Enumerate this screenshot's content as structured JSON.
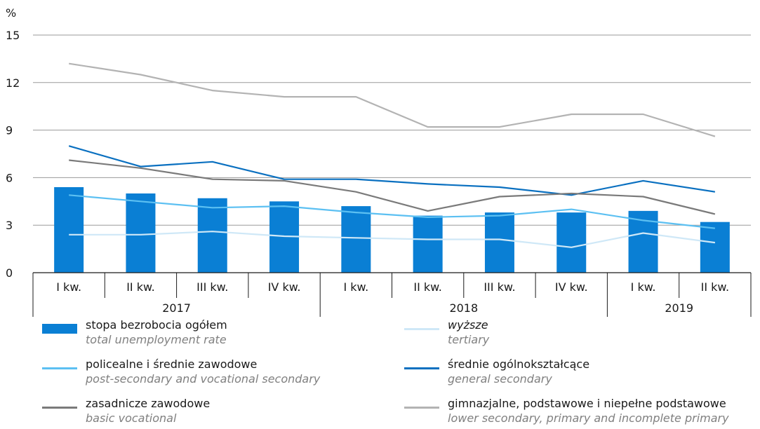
{
  "chart_data": {
    "type": "bar+line",
    "y_unit_label": "%",
    "ylim": [
      0,
      15
    ],
    "yticks": [
      0,
      3,
      6,
      9,
      12,
      15
    ],
    "grid": true,
    "categories": [
      "I kw.",
      "II kw.",
      "III kw.",
      "IV kw.",
      "I kw.",
      "II kw.",
      "III kw.",
      "IV kw.",
      "I kw.",
      "II kw."
    ],
    "years": [
      {
        "label": "2017",
        "quarters": 4
      },
      {
        "label": "2018",
        "quarters": 4
      },
      {
        "label": "2019",
        "quarters": 2
      }
    ],
    "bars": {
      "name": "stopa bezrobocia ogółem",
      "name_en": "total unemployment rate",
      "color": "#0a7fd4",
      "values": [
        5.4,
        5.0,
        4.7,
        4.5,
        4.2,
        3.6,
        3.8,
        3.8,
        3.9,
        3.2
      ]
    },
    "series": [
      {
        "name": "wyższe",
        "name_en": "tertiary",
        "color": "#cfe8f7",
        "italic": true,
        "values": [
          2.4,
          2.4,
          2.6,
          2.3,
          2.2,
          2.1,
          2.1,
          1.6,
          2.5,
          1.9
        ]
      },
      {
        "name": "średnie ogólnokształcące",
        "name_en": "general secondary",
        "color": "#0a70c0",
        "values": [
          8.0,
          6.7,
          7.0,
          5.9,
          5.9,
          5.6,
          5.4,
          4.9,
          5.8,
          5.1
        ]
      },
      {
        "name": "policealne i średnie zawodowe",
        "name_en": "post-secondary and vocational secondary",
        "color": "#5cc0f2",
        "values": [
          4.9,
          4.5,
          4.1,
          4.2,
          3.8,
          3.5,
          3.6,
          4.0,
          3.3,
          2.8
        ]
      },
      {
        "name": "zasadnicze zawodowe",
        "name_en": "basic vocational",
        "color": "#7a7a7a",
        "values": [
          7.1,
          6.6,
          5.9,
          5.8,
          5.1,
          3.9,
          4.8,
          5.0,
          4.8,
          3.7
        ]
      },
      {
        "name": "gimnazjalne, podstawowe i niepełne podstawowe",
        "name_en": "lower secondary, primary and incomplete primary",
        "color": "#b3b3b3",
        "values": [
          13.2,
          12.5,
          11.5,
          11.1,
          11.1,
          9.2,
          9.2,
          10.0,
          10.0,
          8.6
        ]
      }
    ]
  }
}
